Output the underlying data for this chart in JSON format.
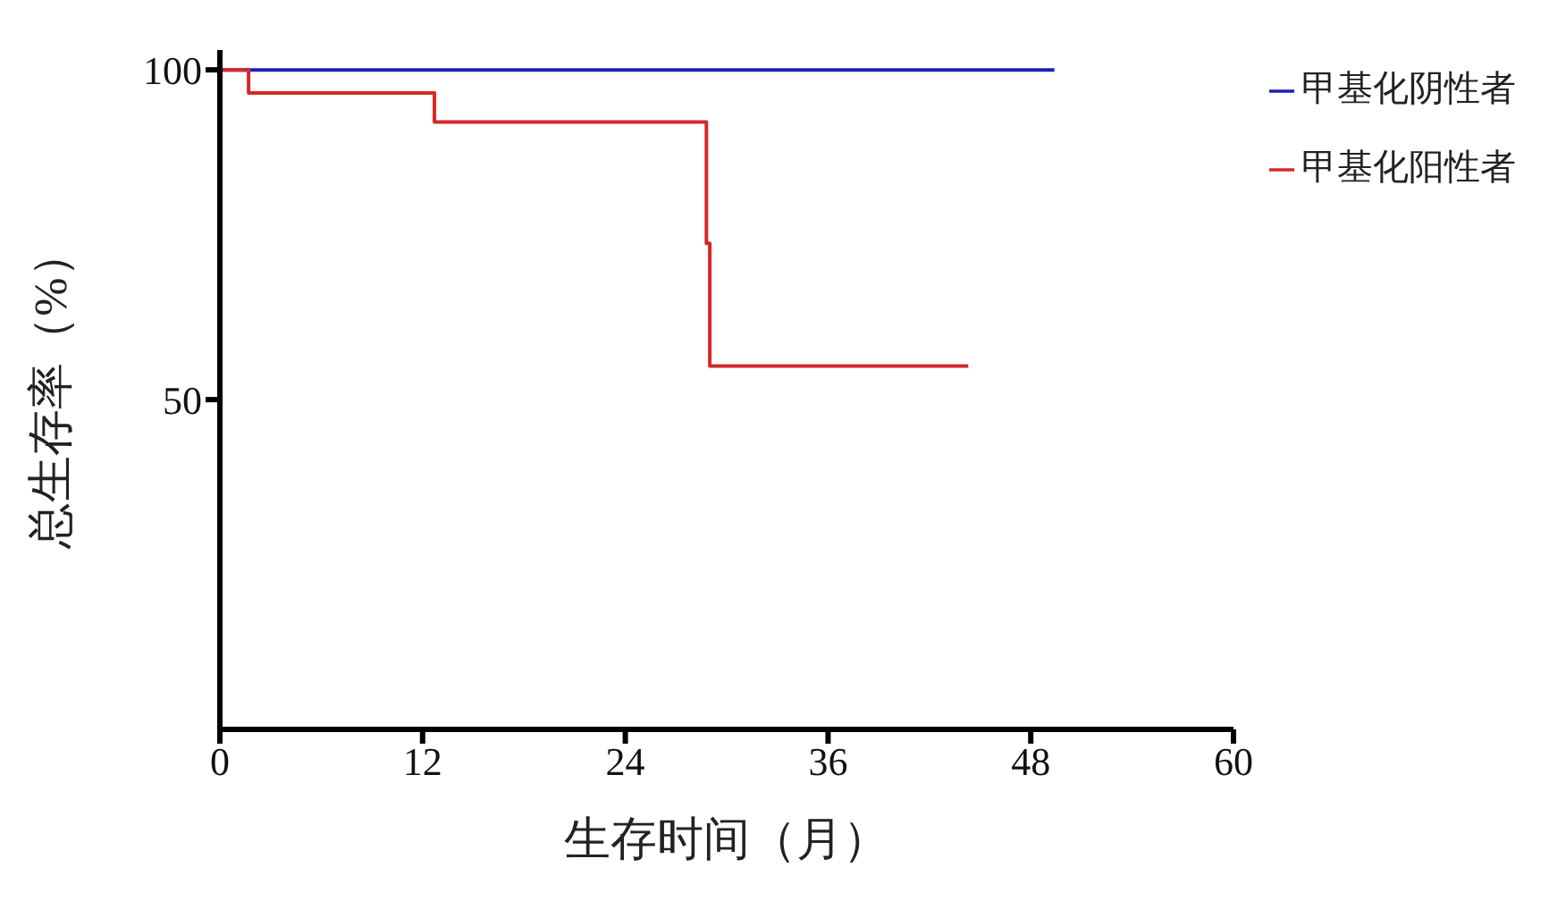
{
  "chart_data": {
    "type": "step",
    "xlabel": "生存时间（月）",
    "ylabel": "总生存率（%）",
    "xlim": [
      0,
      60
    ],
    "xticks": [
      0,
      12,
      24,
      36,
      48,
      60
    ],
    "ylim": [
      0,
      103
    ],
    "yticks": [
      50,
      100
    ],
    "legend": "top right",
    "grid": false,
    "marker": "none",
    "line_style": "solid",
    "series": [
      {
        "name": "甲基化阴性者",
        "color": "#1f1fb4",
        "x": [
          0,
          49.4
        ],
        "values": [
          100,
          100
        ]
      },
      {
        "name": "甲基化阳性者",
        "color": "#d42a2a",
        "x": [
          0,
          1.7,
          12.7,
          28.8,
          29.0,
          44.3
        ],
        "values": [
          100,
          96.5,
          92.1,
          73.7,
          55.1,
          55.1
        ]
      }
    ]
  }
}
